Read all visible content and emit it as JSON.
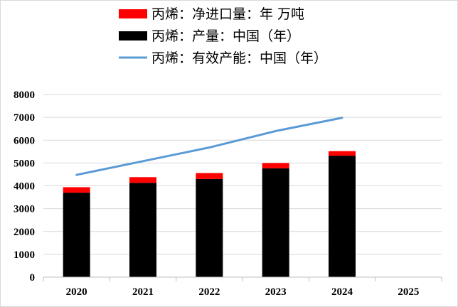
{
  "chart_data": {
    "type": "bar",
    "categories": [
      "2020",
      "2021",
      "2022",
      "2023",
      "2024",
      "2025"
    ],
    "series": [
      {
        "name": "丙烯：产量：中国（年）",
        "type": "bar",
        "stack": "total",
        "color": "#000000",
        "values": [
          3700,
          4130,
          4300,
          4770,
          5320,
          null
        ]
      },
      {
        "name": "丙烯：净进口量：年 万吨",
        "type": "bar",
        "stack": "total",
        "color": "#ff0000",
        "values": [
          240,
          250,
          260,
          230,
          200,
          null
        ]
      },
      {
        "name": "丙烯：有效产能：中国（年）",
        "type": "line",
        "color": "#5b9bd5",
        "values": [
          4480,
          5080,
          5680,
          6400,
          6980,
          null
        ]
      }
    ],
    "legend_order": [
      1,
      0,
      2
    ],
    "ylim": [
      0,
      8000
    ],
    "yticks": [
      "0",
      "1000",
      "2000",
      "3000",
      "4000",
      "5000",
      "6000",
      "7000",
      "8000"
    ],
    "grid": true,
    "legend_position": "top-center"
  }
}
